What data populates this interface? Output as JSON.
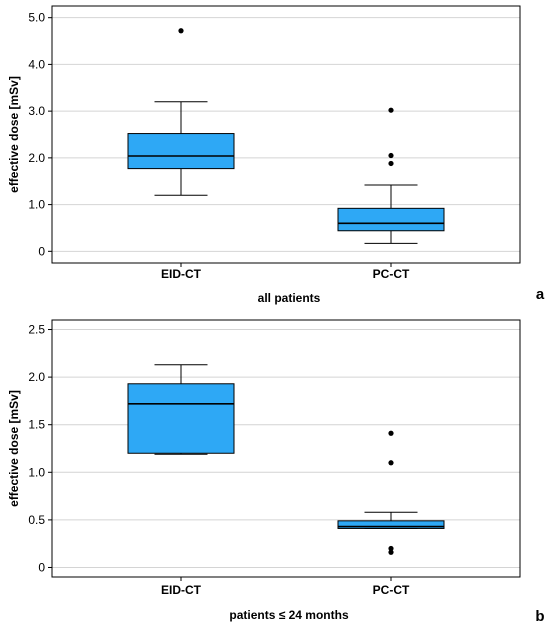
{
  "chart_data": [
    {
      "type": "box",
      "panel_label": "a",
      "xlabel": "all patients",
      "ylabel": "effective dose [mSv]",
      "ylim": [
        -0.25,
        5.25
      ],
      "yticks": [
        0,
        1.0,
        2.0,
        3.0,
        4.0,
        5.0
      ],
      "ytick_labels": [
        "0",
        "1.0",
        "2.0",
        "3.0",
        "4.0",
        "5.0"
      ],
      "grid": "horizontal",
      "categories": [
        "EID-CT",
        "PC-CT"
      ],
      "boxes": [
        {
          "category": "EID-CT",
          "whisker_low": 1.2,
          "q1": 1.77,
          "median": 2.04,
          "q3": 2.52,
          "whisker_high": 3.2,
          "outliers": [
            4.72
          ]
        },
        {
          "category": "PC-CT",
          "whisker_low": 0.17,
          "q1": 0.44,
          "median": 0.6,
          "q3": 0.92,
          "whisker_high": 1.42,
          "outliers": [
            1.88,
            2.05,
            3.02
          ]
        }
      ],
      "color": "#2ea8f5"
    },
    {
      "type": "box",
      "panel_label": "b",
      "xlabel": "patients ≤ 24 months",
      "ylabel": "effective dose [mSv]",
      "ylim": [
        -0.1,
        2.6
      ],
      "yticks": [
        0,
        0.5,
        1.0,
        1.5,
        2.0,
        2.5
      ],
      "ytick_labels": [
        "0",
        "0.5",
        "1.0",
        "1.5",
        "2.0",
        "2.5"
      ],
      "grid": "horizontal",
      "categories": [
        "EID-CT",
        "PC-CT"
      ],
      "boxes": [
        {
          "category": "EID-CT",
          "whisker_low": 1.19,
          "q1": 1.2,
          "median": 1.72,
          "q3": 1.93,
          "whisker_high": 2.13,
          "outliers": []
        },
        {
          "category": "PC-CT",
          "whisker_low": 0.41,
          "q1": 0.41,
          "median": 0.43,
          "q3": 0.49,
          "whisker_high": 0.58,
          "outliers": [
            0.16,
            0.2,
            1.1,
            1.41
          ]
        }
      ],
      "color": "#2ea8f5"
    }
  ]
}
